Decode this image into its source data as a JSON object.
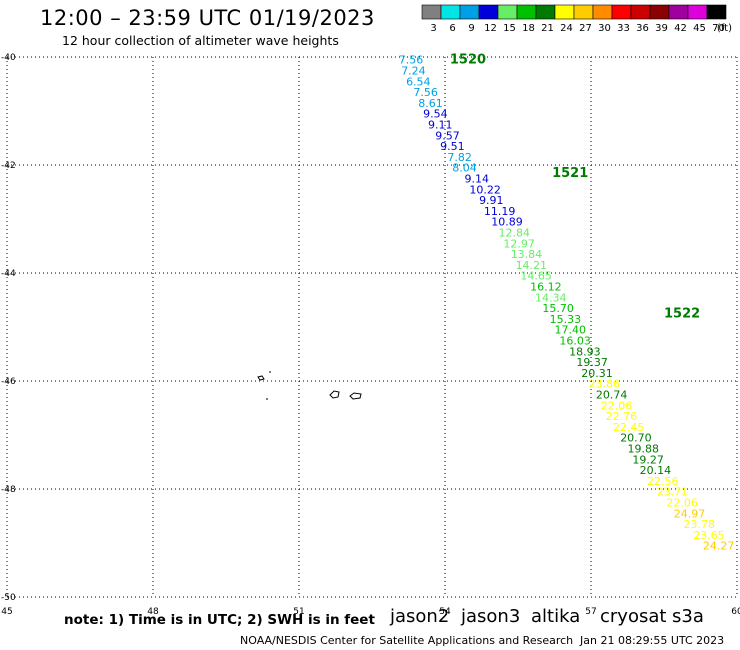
{
  "header": {
    "title": "12:00 – 23:59 UTC 01/19/2023",
    "subtitle": "12 hour collection of altimeter wave heights"
  },
  "scale": {
    "unit_label": "(ft)",
    "bins": [
      {
        "label": "3",
        "color": "#808080"
      },
      {
        "label": "6",
        "color": "#00e5e5"
      },
      {
        "label": "9",
        "color": "#00a0e6"
      },
      {
        "label": "12",
        "color": "#0000d8"
      },
      {
        "label": "15",
        "color": "#66ee66"
      },
      {
        "label": "18",
        "color": "#00c000"
      },
      {
        "label": "21",
        "color": "#007a00"
      },
      {
        "label": "24",
        "color": "#ffff00"
      },
      {
        "label": "27",
        "color": "#ffcc00"
      },
      {
        "label": "30",
        "color": "#ff8c00"
      },
      {
        "label": "33",
        "color": "#ff0000"
      },
      {
        "label": "36",
        "color": "#cc0000"
      },
      {
        "label": "39",
        "color": "#8b0000"
      },
      {
        "label": "42",
        "color": "#a000a0"
      },
      {
        "label": "45",
        "color": "#dd00dd"
      },
      {
        "label": "70",
        "color": "#000000"
      }
    ]
  },
  "map": {
    "lon_range": [
      45,
      60
    ],
    "lat_range": [
      -50,
      -40
    ],
    "lon_ticks": [
      "45",
      "48",
      "51",
      "54",
      "57",
      "60"
    ],
    "lat_ticks": [
      "-40",
      "-42",
      "-44",
      "-46",
      "-48",
      "-50"
    ],
    "grid": "dotted",
    "pass_labels": [
      {
        "text": "1520",
        "lon": 54.1,
        "lat": -40.05
      },
      {
        "text": "1521",
        "lon": 56.2,
        "lat": -42.15
      },
      {
        "text": "1522",
        "lon": 58.5,
        "lat": -44.75
      }
    ],
    "observations": [
      {
        "value": "7.56",
        "lon": 53.05,
        "lat": -40.05,
        "color": "#00a0e6"
      },
      {
        "value": "7.24",
        "lon": 53.1,
        "lat": -40.25,
        "color": "#00a0e6"
      },
      {
        "value": "6.54",
        "lon": 53.2,
        "lat": -40.45,
        "color": "#00a0e6"
      },
      {
        "value": "7.56",
        "lon": 53.35,
        "lat": -40.65,
        "color": "#00a0e6"
      },
      {
        "value": "8.61",
        "lon": 53.45,
        "lat": -40.85,
        "color": "#00a0e6"
      },
      {
        "value": "9.54",
        "lon": 53.55,
        "lat": -41.05,
        "color": "#0000d8"
      },
      {
        "value": "9.11",
        "lon": 53.65,
        "lat": -41.25,
        "color": "#0000d8"
      },
      {
        "value": "9.57",
        "lon": 53.8,
        "lat": -41.45,
        "color": "#0000d8"
      },
      {
        "value": "9.51",
        "lon": 53.9,
        "lat": -41.65,
        "color": "#0000d8"
      },
      {
        "value": "7.82",
        "lon": 54.05,
        "lat": -41.85,
        "color": "#00a0e6"
      },
      {
        "value": "8.04",
        "lon": 54.15,
        "lat": -42.05,
        "color": "#00a0e6"
      },
      {
        "value": "9.14",
        "lon": 54.4,
        "lat": -42.25,
        "color": "#0000d8"
      },
      {
        "value": "10.22",
        "lon": 54.5,
        "lat": -42.45,
        "color": "#0000d8"
      },
      {
        "value": "9.91",
        "lon": 54.7,
        "lat": -42.65,
        "color": "#0000d8"
      },
      {
        "value": "11.19",
        "lon": 54.8,
        "lat": -42.85,
        "color": "#0000d8"
      },
      {
        "value": "10.89",
        "lon": 54.95,
        "lat": -43.05,
        "color": "#0000d8"
      },
      {
        "value": "12.84",
        "lon": 55.1,
        "lat": -43.25,
        "color": "#66ee66"
      },
      {
        "value": "12.97",
        "lon": 55.2,
        "lat": -43.45,
        "color": "#66ee66"
      },
      {
        "value": "13.84",
        "lon": 55.35,
        "lat": -43.65,
        "color": "#66ee66"
      },
      {
        "value": "14.21",
        "lon": 55.45,
        "lat": -43.85,
        "color": "#66ee66"
      },
      {
        "value": "14.65",
        "lon": 55.55,
        "lat": -44.05,
        "color": "#66ee66"
      },
      {
        "value": "16.12",
        "lon": 55.75,
        "lat": -44.25,
        "color": "#00c000"
      },
      {
        "value": "14.34",
        "lon": 55.85,
        "lat": -44.45,
        "color": "#66ee66"
      },
      {
        "value": "15.70",
        "lon": 56.0,
        "lat": -44.65,
        "color": "#00c000"
      },
      {
        "value": "15.33",
        "lon": 56.15,
        "lat": -44.85,
        "color": "#00c000"
      },
      {
        "value": "17.40",
        "lon": 56.25,
        "lat": -45.05,
        "color": "#00c000"
      },
      {
        "value": "16.03",
        "lon": 56.35,
        "lat": -45.25,
        "color": "#00c000"
      },
      {
        "value": "18.93",
        "lon": 56.55,
        "lat": -45.45,
        "color": "#007a00"
      },
      {
        "value": "19.37",
        "lon": 56.7,
        "lat": -45.65,
        "color": "#007a00"
      },
      {
        "value": "20.31",
        "lon": 56.8,
        "lat": -45.85,
        "color": "#007a00"
      },
      {
        "value": "23.86",
        "lon": 56.95,
        "lat": -46.05,
        "color": "#ffff00"
      },
      {
        "value": "20.74",
        "lon": 57.1,
        "lat": -46.25,
        "color": "#007a00"
      },
      {
        "value": "22.06",
        "lon": 57.2,
        "lat": -46.45,
        "color": "#ffff00"
      },
      {
        "value": "22.76",
        "lon": 57.3,
        "lat": -46.65,
        "color": "#ffff00"
      },
      {
        "value": "22.45",
        "lon": 57.45,
        "lat": -46.85,
        "color": "#ffff00"
      },
      {
        "value": "20.70",
        "lon": 57.6,
        "lat": -47.05,
        "color": "#007a00"
      },
      {
        "value": "19.88",
        "lon": 57.75,
        "lat": -47.25,
        "color": "#007a00"
      },
      {
        "value": "19.27",
        "lon": 57.85,
        "lat": -47.45,
        "color": "#007a00"
      },
      {
        "value": "20.14",
        "lon": 58.0,
        "lat": -47.65,
        "color": "#007a00"
      },
      {
        "value": "22.56",
        "lon": 58.15,
        "lat": -47.85,
        "color": "#ffff00"
      },
      {
        "value": "23.71",
        "lon": 58.35,
        "lat": -48.05,
        "color": "#ffff00"
      },
      {
        "value": "22.06",
        "lon": 58.55,
        "lat": -48.25,
        "color": "#ffff00"
      },
      {
        "value": "24.97",
        "lon": 58.7,
        "lat": -48.45,
        "color": "#ffcc00"
      },
      {
        "value": "23.78",
        "lon": 58.9,
        "lat": -48.65,
        "color": "#ffff00"
      },
      {
        "value": "23.65",
        "lon": 59.1,
        "lat": -48.85,
        "color": "#ffff00"
      },
      {
        "value": "24.27",
        "lon": 59.3,
        "lat": -49.05,
        "color": "#ffcc00"
      }
    ]
  },
  "legend": {
    "note": "note: 1) Time is in UTC; 2) SWH is in feet",
    "satellites": [
      {
        "name": "jason2",
        "color": "#0000dd"
      },
      {
        "name": "jason3",
        "color": "#00aa00"
      },
      {
        "name": "altika",
        "color": "#ff9900"
      },
      {
        "name": "cryosat",
        "color": "#ee0000"
      },
      {
        "name": "s3a",
        "color": "#990000"
      }
    ]
  },
  "footer": {
    "credit": "NOAA/NESDIS Center for Satellite Applications and Research",
    "timestamp": "Jan 21 08:29:55 UTC 2023"
  }
}
